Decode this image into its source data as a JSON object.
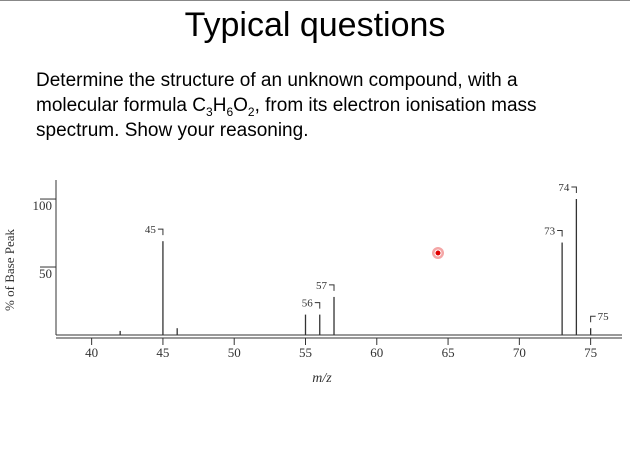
{
  "slide": {
    "title": "Typical questions",
    "question": {
      "before": "Determine the structure of an unknown compound, with a molecular formula ",
      "formula": [
        "C",
        "3",
        "H",
        "6",
        "O",
        "2"
      ],
      "after": ", from its electron ionisation mass spectrum. Show your reasoning."
    }
  },
  "chart_data": {
    "type": "bar",
    "x_label": "m/z",
    "y_label": "% of Base Peak",
    "x": [
      42,
      45,
      46,
      55,
      56,
      57,
      73,
      74,
      75
    ],
    "values": [
      3,
      69,
      5,
      15,
      15,
      28,
      68,
      100,
      5
    ],
    "peak_labels": [
      null,
      "45",
      null,
      null,
      "56",
      "57",
      "73",
      "74",
      "75"
    ],
    "color": "#333333",
    "xlim": [
      37.5,
      77.2
    ],
    "ylim": [
      0,
      114
    ],
    "xticks": [
      40,
      45,
      50,
      55,
      60,
      65,
      70,
      75
    ],
    "yticks": [
      50,
      100
    ]
  }
}
